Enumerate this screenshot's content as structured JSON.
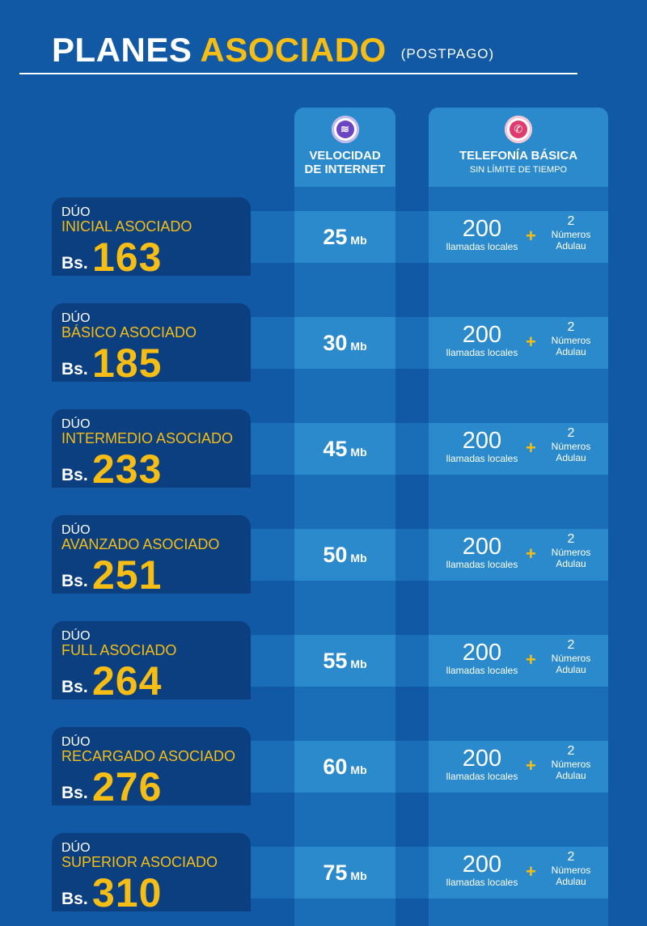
{
  "header": {
    "title_part1": "PLANES",
    "title_part2": "ASOCIADO",
    "title_part3": "(POSTPAGO)"
  },
  "columns": {
    "speed": {
      "icon": "wifi-icon",
      "title_line1": "VELOCIDAD",
      "title_line2": "DE INTERNET"
    },
    "telephony": {
      "icon": "phone-icon",
      "title": "TELEFONÍA BÁSICA",
      "subtitle": "SIN LÍMITE DE TIEMPO"
    }
  },
  "plans": [
    {
      "duo": "DÚO",
      "name": "INICIAL ASOCIADO",
      "currency": "Bs.",
      "price": "163",
      "speed": "25",
      "speed_unit": "Mb",
      "calls": "200",
      "calls_label": "llamadas locales",
      "plus": "+",
      "numbers": "2",
      "numbers_line1": "Números",
      "numbers_line2": "Adulau"
    },
    {
      "duo": "DÚO",
      "name": "BÁSICO ASOCIADO",
      "currency": "Bs.",
      "price": "185",
      "speed": "30",
      "speed_unit": "Mb",
      "calls": "200",
      "calls_label": "llamadas locales",
      "plus": "+",
      "numbers": "2",
      "numbers_line1": "Números",
      "numbers_line2": "Adulau"
    },
    {
      "duo": "DÚO",
      "name": "INTERMEDIO ASOCIADO",
      "currency": "Bs.",
      "price": "233",
      "speed": "45",
      "speed_unit": "Mb",
      "calls": "200",
      "calls_label": "llamadas locales",
      "plus": "+",
      "numbers": "2",
      "numbers_line1": "Números",
      "numbers_line2": "Adulau"
    },
    {
      "duo": "DÚO",
      "name": "AVANZADO ASOCIADO",
      "currency": "Bs.",
      "price": "251",
      "speed": "50",
      "speed_unit": "Mb",
      "calls": "200",
      "calls_label": "llamadas locales",
      "plus": "+",
      "numbers": "2",
      "numbers_line1": "Números",
      "numbers_line2": "Adulau"
    },
    {
      "duo": "DÚO",
      "name": "FULL ASOCIADO",
      "currency": "Bs.",
      "price": "264",
      "speed": "55",
      "speed_unit": "Mb",
      "calls": "200",
      "calls_label": "llamadas locales",
      "plus": "+",
      "numbers": "2",
      "numbers_line1": "Números",
      "numbers_line2": "Adulau"
    },
    {
      "duo": "DÚO",
      "name": "RECARGADO ASOCIADO",
      "currency": "Bs.",
      "price": "276",
      "speed": "60",
      "speed_unit": "Mb",
      "calls": "200",
      "calls_label": "llamadas locales",
      "plus": "+",
      "numbers": "2",
      "numbers_line1": "Números",
      "numbers_line2": "Adulau"
    },
    {
      "duo": "DÚO",
      "name": "SUPERIOR ASOCIADO",
      "currency": "Bs.",
      "price": "310",
      "speed": "75",
      "speed_unit": "Mb",
      "calls": "200",
      "calls_label": "llamadas locales",
      "plus": "+",
      "numbers": "2",
      "numbers_line1": "Números",
      "numbers_line2": "Adulau"
    }
  ],
  "colors": {
    "background": "#1259a5",
    "accent_yellow": "#f6be14",
    "plan_card": "#0c3f7f",
    "cell": "#2a8acb",
    "column": "#1a6db7"
  }
}
